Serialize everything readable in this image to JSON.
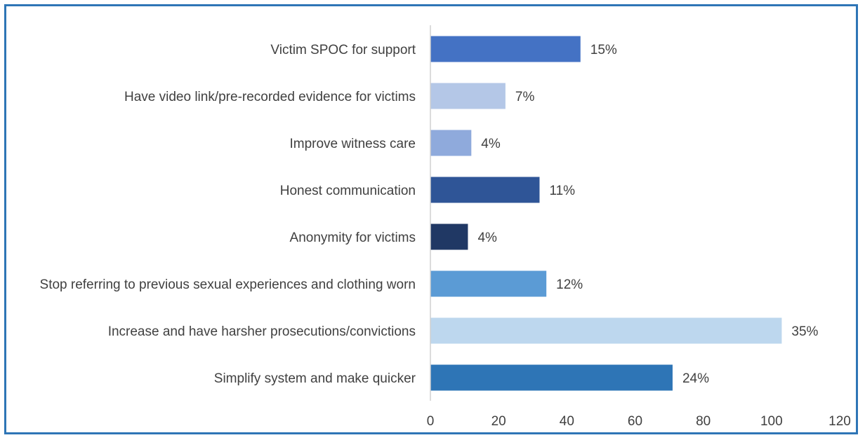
{
  "chart_data": {
    "type": "bar",
    "orientation": "horizontal",
    "categories": [
      "Victim SPOC for support",
      "Have video link/pre-recorded evidence for victims",
      "Improve witness care",
      "Honest communication",
      "Anonymity for victims",
      "Stop referring to previous sexual experiences and clothing worn",
      "Increase and have harsher prosecutions/convictions",
      "Simplify system and make quicker"
    ],
    "values": [
      44,
      22,
      12,
      32,
      11,
      34,
      103,
      71
    ],
    "data_labels": [
      "15%",
      "7%",
      "4%",
      "11%",
      "4%",
      "12%",
      "35%",
      "24%"
    ],
    "colors": [
      "#4472C4",
      "#B4C7E7",
      "#8FAADC",
      "#2F5597",
      "#203864",
      "#5B9BD5",
      "#BDD7EE",
      "#2E75B6"
    ],
    "xlim": [
      0,
      120
    ],
    "xticks": [
      "0",
      "20",
      "40",
      "60",
      "80",
      "100",
      "120"
    ],
    "xtick_values": [
      0,
      20,
      40,
      60,
      80,
      100,
      120
    ],
    "grid": false,
    "legend": "none",
    "border_color": "#2E75B6"
  }
}
